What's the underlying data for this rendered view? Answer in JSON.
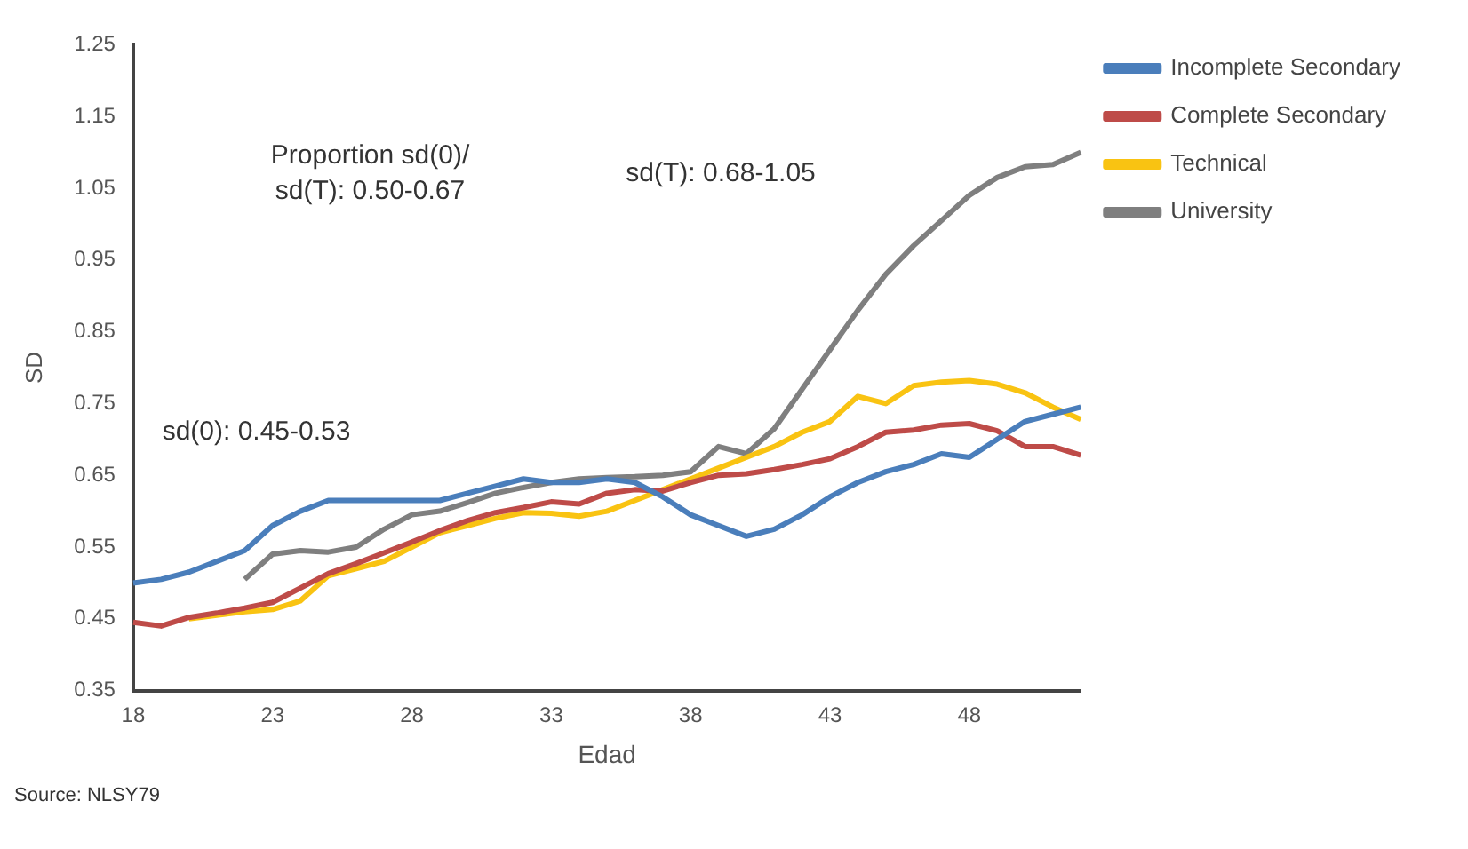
{
  "chart_data": {
    "type": "line",
    "ylabel": "SD",
    "xlabel": "Edad",
    "categories": [
      "18",
      null,
      null,
      null,
      null,
      "23",
      null,
      null,
      null,
      null,
      "28",
      null,
      null,
      null,
      null,
      "33",
      null,
      null,
      null,
      null,
      "38",
      null,
      null,
      null,
      null,
      "43",
      null,
      null,
      null,
      null,
      "48",
      null,
      null,
      null,
      null
    ],
    "series": [
      {
        "name": "Incomplete Secondary",
        "color": "#4a7ebb",
        "values": [
          0.5,
          0.505,
          0.515,
          0.53,
          0.545,
          0.58,
          0.6,
          0.615,
          0.615,
          0.615,
          0.615,
          0.615,
          0.625,
          0.635,
          0.645,
          0.64,
          0.64,
          0.645,
          0.64,
          0.62,
          0.595,
          0.58,
          0.565,
          0.575,
          0.595,
          0.62,
          0.64,
          0.655,
          0.665,
          0.68,
          0.675,
          0.7,
          0.725,
          0.735,
          0.745
        ]
      },
      {
        "name": "Complete Secondary",
        "color": "#be4b48",
        "values": [
          0.445,
          0.44,
          0.452,
          0.458,
          0.465,
          0.473,
          0.493,
          0.513,
          0.527,
          0.542,
          0.557,
          0.573,
          0.587,
          0.598,
          0.605,
          0.613,
          0.61,
          0.625,
          0.63,
          0.628,
          0.64,
          0.65,
          0.652,
          0.658,
          0.665,
          0.673,
          0.69,
          0.71,
          0.713,
          0.72,
          0.722,
          0.712,
          0.69,
          0.69,
          0.678
        ]
      },
      {
        "name": "Technical",
        "color": "#f9c312",
        "values": [
          null,
          null,
          0.45,
          0.455,
          0.46,
          0.463,
          0.475,
          0.51,
          0.52,
          0.53,
          0.55,
          0.57,
          0.58,
          0.59,
          0.598,
          0.597,
          0.593,
          0.6,
          0.615,
          0.63,
          0.645,
          0.66,
          0.675,
          0.69,
          0.71,
          0.725,
          0.76,
          0.75,
          0.775,
          0.78,
          0.782,
          0.777,
          0.765,
          0.745,
          0.728
        ]
      },
      {
        "name": "University",
        "color": "#7f7f7f",
        "values": [
          null,
          null,
          null,
          null,
          0.505,
          0.54,
          0.545,
          0.543,
          0.55,
          0.575,
          0.595,
          0.6,
          0.612,
          0.625,
          0.633,
          0.64,
          0.645,
          0.647,
          0.648,
          0.65,
          0.655,
          0.69,
          0.68,
          0.715,
          0.77,
          0.825,
          0.88,
          0.93,
          0.97,
          1.005,
          1.04,
          1.065,
          1.08,
          1.083,
          1.1
        ]
      }
    ],
    "ylim": [
      0.35,
      1.25
    ],
    "yticks": [
      0.35,
      0.45,
      0.55,
      0.65,
      0.75,
      0.85,
      0.95,
      1.05,
      1.15,
      1.25
    ],
    "grid": false,
    "legend": "top right",
    "marker": "none",
    "line_style": "solid",
    "annotations": [
      "Proportion sd(0)/\nsd(T): 0.50-0.67",
      "sd(T): 0.68-1.05",
      "sd(0): 0.45-0.53",
      "Source: NLSY79"
    ]
  }
}
